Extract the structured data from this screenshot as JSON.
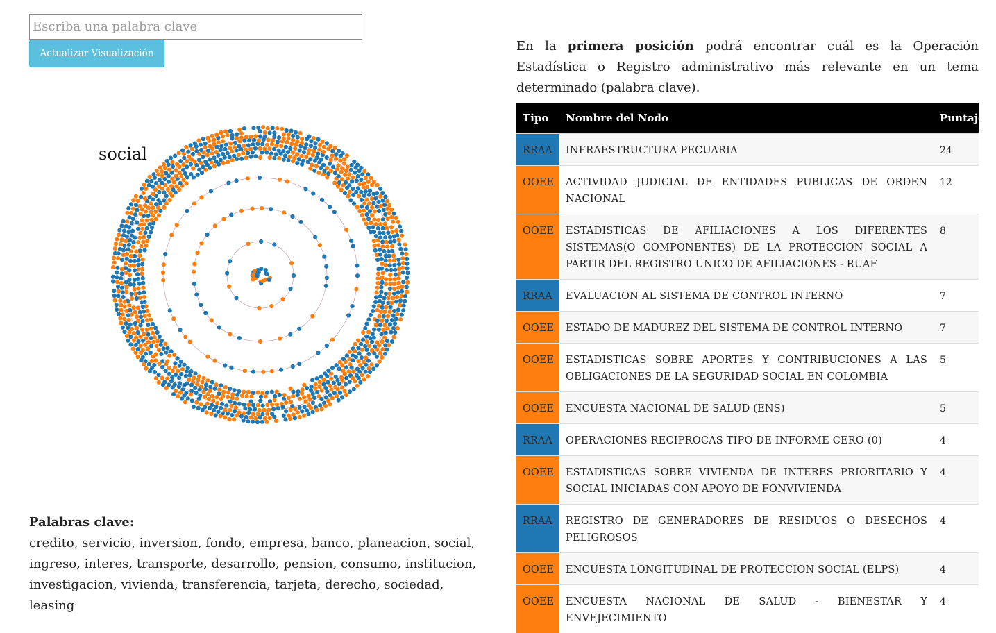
{
  "search": {
    "placeholder": "Escriba una palabra clave",
    "value": ""
  },
  "update_button": "Actualizar Visualización",
  "viz": {
    "label": "social",
    "colors": {
      "rraa": "#1f77b4",
      "ooee": "#ff7f0e",
      "ring": "#c8a0b4"
    }
  },
  "keywords": {
    "title": "Palabras clave:",
    "list": "credito, servicio, inversion, fondo, empresa, banco, planeacion, social, ingreso, interes, transporte, desarrollo, pension, consumo, institucion, investigacion, vivienda, transferencia, tarjeta, derecho, sociedad, leasing"
  },
  "intro": {
    "part1": "En la ",
    "bold": "primera posición",
    "part2": " podrá encontrar cuál es la Operación Estadística o Registro administrativo más relevante en un tema determinado (palabra clave)."
  },
  "table": {
    "headers": {
      "tipo": "Tipo",
      "nombre": "Nombre del Nodo",
      "puntaje": "Puntaje"
    },
    "rows": [
      {
        "tipo": "RRAA",
        "nombre": "INFRAESTRUCTURA PECUARIA",
        "puntaje": "24"
      },
      {
        "tipo": "OOEE",
        "nombre": "ACTIVIDAD JUDICIAL DE ENTIDADES PUBLICAS DE ORDEN NACIONAL",
        "puntaje": "12"
      },
      {
        "tipo": "OOEE",
        "nombre": "ESTADISTICAS DE AFILIACIONES A LOS DIFERENTES SISTEMAS(O COMPONENTES) DE LA PROTECCION SOCIAL A PARTIR DEL REGISTRO UNICO DE AFILIACIONES - RUAF",
        "puntaje": "8"
      },
      {
        "tipo": "RRAA",
        "nombre": "EVALUACION AL SISTEMA DE CONTROL INTERNO",
        "puntaje": "7"
      },
      {
        "tipo": "OOEE",
        "nombre": "ESTADO DE MADUREZ DEL SISTEMA DE CONTROL INTERNO",
        "puntaje": "7"
      },
      {
        "tipo": "OOEE",
        "nombre": "ESTADISTICAS SOBRE APORTES Y CONTRIBUCIONES A LAS OBLIGACIONES DE LA SEGURIDAD SOCIAL EN COLOMBIA",
        "puntaje": "5"
      },
      {
        "tipo": "OOEE",
        "nombre": "ENCUESTA NACIONAL DE SALUD (ENS)",
        "puntaje": "5"
      },
      {
        "tipo": "RRAA",
        "nombre": "OPERACIONES RECIPROCAS TIPO DE INFORME CERO (0)",
        "puntaje": "4"
      },
      {
        "tipo": "OOEE",
        "nombre": "ESTADISTICAS SOBRE VIVIENDA DE INTERES PRIORITARIO Y SOCIAL INICIADAS CON APOYO DE FONVIVIENDA",
        "puntaje": "4"
      },
      {
        "tipo": "RRAA",
        "nombre": "REGISTRO DE GENERADORES DE RESIDUOS O DESECHOS PELIGROSOS",
        "puntaje": "4"
      },
      {
        "tipo": "OOEE",
        "nombre": "ENCUESTA LONGITUDINAL DE PROTECCION SOCIAL (ELPS)",
        "puntaje": "4"
      },
      {
        "tipo": "OOEE",
        "nombre": "ENCUESTA NACIONAL DE SALUD - BIENESTAR Y ENVEJECIMIENTO",
        "puntaje": "4"
      }
    ]
  }
}
